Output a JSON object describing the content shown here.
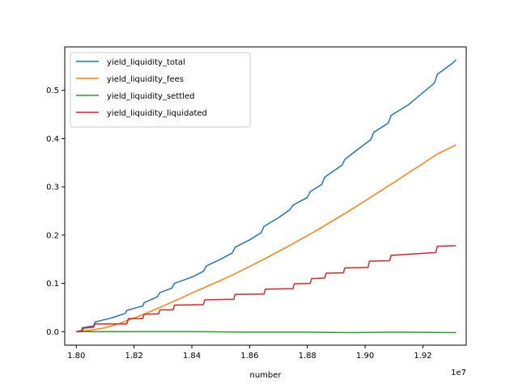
{
  "chart_data": {
    "type": "line",
    "title": "",
    "xlabel": "number",
    "ylabel": "",
    "x_offset_label": "1e7",
    "xlim": [
      1.796,
      1.935
    ],
    "ylim": [
      -0.028,
      0.59
    ],
    "x_ticks": [
      1.8,
      1.82,
      1.84,
      1.86,
      1.88,
      1.9,
      1.92
    ],
    "x_tick_labels": [
      "1.80",
      "1.82",
      "1.84",
      "1.86",
      "1.88",
      "1.90",
      "1.92"
    ],
    "y_ticks": [
      0.0,
      0.1,
      0.2,
      0.3,
      0.4,
      0.5
    ],
    "y_tick_labels": [
      "0.0",
      "0.1",
      "0.2",
      "0.3",
      "0.4",
      "0.5"
    ],
    "grid": false,
    "legend_position": "top-left",
    "series": [
      {
        "name": "yield_liquidity_total",
        "color": "#1f77b4",
        "points": [
          [
            1.8,
            0.0
          ],
          [
            1.802,
            0.003
          ],
          [
            1.802,
            0.008
          ],
          [
            1.806,
            0.012
          ],
          [
            1.8065,
            0.02
          ],
          [
            1.812,
            0.028
          ],
          [
            1.815,
            0.034
          ],
          [
            1.817,
            0.038
          ],
          [
            1.8175,
            0.044
          ],
          [
            1.821,
            0.05
          ],
          [
            1.823,
            0.053
          ],
          [
            1.8235,
            0.06
          ],
          [
            1.828,
            0.072
          ],
          [
            1.829,
            0.081
          ],
          [
            1.833,
            0.09
          ],
          [
            1.834,
            0.1
          ],
          [
            1.84,
            0.113
          ],
          [
            1.844,
            0.125
          ],
          [
            1.845,
            0.136
          ],
          [
            1.85,
            0.15
          ],
          [
            1.854,
            0.163
          ],
          [
            1.855,
            0.175
          ],
          [
            1.86,
            0.19
          ],
          [
            1.864,
            0.205
          ],
          [
            1.865,
            0.218
          ],
          [
            1.87,
            0.236
          ],
          [
            1.874,
            0.253
          ],
          [
            1.875,
            0.262
          ],
          [
            1.88,
            0.278
          ],
          [
            1.881,
            0.29
          ],
          [
            1.885,
            0.305
          ],
          [
            1.886,
            0.32
          ],
          [
            1.892,
            0.345
          ],
          [
            1.893,
            0.357
          ],
          [
            1.898,
            0.38
          ],
          [
            1.902,
            0.398
          ],
          [
            1.903,
            0.413
          ],
          [
            1.908,
            0.432
          ],
          [
            1.909,
            0.448
          ],
          [
            1.915,
            0.47
          ],
          [
            1.92,
            0.495
          ],
          [
            1.924,
            0.515
          ],
          [
            1.925,
            0.533
          ],
          [
            1.93,
            0.555
          ],
          [
            1.9315,
            0.563
          ]
        ]
      },
      {
        "name": "yield_liquidity_fees",
        "color": "#ff7f0e",
        "points": [
          [
            1.8,
            0.0
          ],
          [
            1.805,
            0.003
          ],
          [
            1.81,
            0.008
          ],
          [
            1.815,
            0.017
          ],
          [
            1.82,
            0.028
          ],
          [
            1.825,
            0.04
          ],
          [
            1.83,
            0.053
          ],
          [
            1.835,
            0.066
          ],
          [
            1.84,
            0.08
          ],
          [
            1.845,
            0.093
          ],
          [
            1.85,
            0.106
          ],
          [
            1.855,
            0.12
          ],
          [
            1.86,
            0.135
          ],
          [
            1.865,
            0.15
          ],
          [
            1.87,
            0.166
          ],
          [
            1.875,
            0.182
          ],
          [
            1.88,
            0.199
          ],
          [
            1.885,
            0.216
          ],
          [
            1.89,
            0.234
          ],
          [
            1.895,
            0.252
          ],
          [
            1.9,
            0.271
          ],
          [
            1.905,
            0.29
          ],
          [
            1.91,
            0.309
          ],
          [
            1.915,
            0.329
          ],
          [
            1.92,
            0.348
          ],
          [
            1.925,
            0.368
          ],
          [
            1.9315,
            0.387
          ]
        ]
      },
      {
        "name": "yield_liquidity_settled",
        "color": "#2ca02c",
        "points": [
          [
            1.8,
            0.0
          ],
          [
            1.82,
            0.0
          ],
          [
            1.84,
            0.0
          ],
          [
            1.86,
            -0.001
          ],
          [
            1.88,
            -0.001
          ],
          [
            1.895,
            -0.002
          ],
          [
            1.91,
            -0.001
          ],
          [
            1.9315,
            -0.002
          ]
        ]
      },
      {
        "name": "yield_liquidity_liquidated",
        "color": "#d62728",
        "points": [
          [
            1.8,
            0.0
          ],
          [
            1.802,
            0.0
          ],
          [
            1.8025,
            0.007
          ],
          [
            1.806,
            0.009
          ],
          [
            1.8065,
            0.016
          ],
          [
            1.8175,
            0.016
          ],
          [
            1.818,
            0.027
          ],
          [
            1.823,
            0.027
          ],
          [
            1.8235,
            0.036
          ],
          [
            1.8285,
            0.037
          ],
          [
            1.829,
            0.045
          ],
          [
            1.8335,
            0.045
          ],
          [
            1.834,
            0.055
          ],
          [
            1.844,
            0.056
          ],
          [
            1.8445,
            0.066
          ],
          [
            1.8545,
            0.067
          ],
          [
            1.855,
            0.077
          ],
          [
            1.865,
            0.078
          ],
          [
            1.8655,
            0.088
          ],
          [
            1.875,
            0.089
          ],
          [
            1.8755,
            0.099
          ],
          [
            1.881,
            0.1
          ],
          [
            1.8815,
            0.11
          ],
          [
            1.886,
            0.111
          ],
          [
            1.8865,
            0.121
          ],
          [
            1.8925,
            0.122
          ],
          [
            1.893,
            0.132
          ],
          [
            1.901,
            0.133
          ],
          [
            1.9015,
            0.146
          ],
          [
            1.9085,
            0.147
          ],
          [
            1.909,
            0.158
          ],
          [
            1.9245,
            0.164
          ],
          [
            1.925,
            0.177
          ],
          [
            1.9315,
            0.178
          ]
        ]
      }
    ]
  }
}
